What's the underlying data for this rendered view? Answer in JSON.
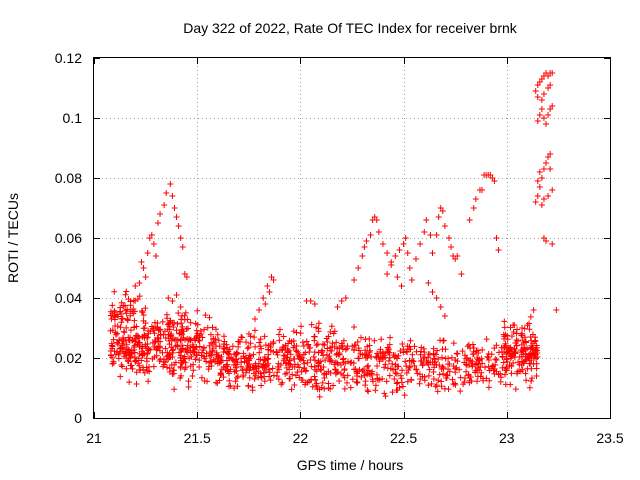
{
  "chart_data": {
    "type": "scatter",
    "title": "Day 322 of 2022, Rate Of TEC Index for receiver brnk",
    "xlabel": "GPS time / hours",
    "ylabel": "ROTI / TECUs",
    "xlim": [
      21,
      23.5
    ],
    "ylim": [
      0,
      0.12
    ],
    "xticks": [
      21,
      21.5,
      22,
      22.5,
      23,
      23.5
    ],
    "xtick_labels": [
      "21",
      "21.5",
      "22",
      "22.5",
      "23",
      "23.5"
    ],
    "yticks": [
      0,
      0.02,
      0.04,
      0.06,
      0.08,
      0.1,
      0.12
    ],
    "ytick_labels": [
      "0",
      "0.02",
      "0.04",
      "0.06",
      "0.08",
      "0.1",
      "0.12"
    ],
    "grid": true,
    "marker": "+",
    "series": [
      {
        "name": "ROTI",
        "color": "#ff0000",
        "clusters": [
          {
            "x": [
              21.08,
              21.6
            ],
            "y": [
              0.008,
              0.04
            ],
            "n": 420
          },
          {
            "x": [
              21.08,
              21.25
            ],
            "y": [
              0.028,
              0.045
            ],
            "n": 40
          },
          {
            "x": [
              21.6,
              22.0
            ],
            "y": [
              0.006,
              0.032
            ],
            "n": 260
          },
          {
            "x": [
              22.0,
              22.45
            ],
            "y": [
              0.004,
              0.034
            ],
            "n": 260
          },
          {
            "x": [
              22.45,
              22.98
            ],
            "y": [
              0.006,
              0.03
            ],
            "n": 240
          },
          {
            "x": [
              22.98,
              23.15
            ],
            "y": [
              0.008,
              0.036
            ],
            "n": 160
          }
        ],
        "points": [
          [
            21.2,
            0.044
          ],
          [
            21.22,
            0.045
          ],
          [
            21.24,
            0.05
          ],
          [
            21.26,
            0.055
          ],
          [
            21.27,
            0.06
          ],
          [
            21.28,
            0.061
          ],
          [
            21.29,
            0.058
          ],
          [
            21.3,
            0.054
          ],
          [
            21.25,
            0.047
          ],
          [
            21.23,
            0.052
          ],
          [
            21.31,
            0.065
          ],
          [
            21.32,
            0.068
          ],
          [
            21.34,
            0.071
          ],
          [
            21.35,
            0.075
          ],
          [
            21.37,
            0.078
          ],
          [
            21.38,
            0.074
          ],
          [
            21.39,
            0.07
          ],
          [
            21.4,
            0.067
          ],
          [
            21.41,
            0.064
          ],
          [
            21.42,
            0.06
          ],
          [
            21.43,
            0.057
          ],
          [
            21.44,
            0.048
          ],
          [
            21.45,
            0.047
          ],
          [
            21.36,
            0.04
          ],
          [
            21.38,
            0.039
          ],
          [
            21.4,
            0.041
          ],
          [
            21.42,
            0.037
          ],
          [
            21.78,
            0.033
          ],
          [
            21.8,
            0.036
          ],
          [
            21.82,
            0.04
          ],
          [
            21.84,
            0.044
          ],
          [
            21.86,
            0.047
          ],
          [
            21.87,
            0.046
          ],
          [
            21.85,
            0.042
          ],
          [
            21.83,
            0.038
          ],
          [
            22.03,
            0.039
          ],
          [
            22.05,
            0.039
          ],
          [
            22.07,
            0.038
          ],
          [
            22.18,
            0.037
          ],
          [
            22.2,
            0.039
          ],
          [
            22.22,
            0.04
          ],
          [
            22.26,
            0.046
          ],
          [
            22.28,
            0.05
          ],
          [
            22.3,
            0.054
          ],
          [
            22.31,
            0.057
          ],
          [
            22.32,
            0.059
          ],
          [
            22.34,
            0.061
          ],
          [
            22.35,
            0.066
          ],
          [
            22.36,
            0.067
          ],
          [
            22.37,
            0.066
          ],
          [
            22.38,
            0.062
          ],
          [
            22.4,
            0.058
          ],
          [
            22.42,
            0.055
          ],
          [
            22.44,
            0.052
          ],
          [
            22.46,
            0.054
          ],
          [
            22.48,
            0.056
          ],
          [
            22.5,
            0.058
          ],
          [
            22.51,
            0.06
          ],
          [
            22.52,
            0.055
          ],
          [
            22.53,
            0.05
          ],
          [
            22.54,
            0.046
          ],
          [
            22.42,
            0.048
          ],
          [
            22.44,
            0.051
          ],
          [
            22.47,
            0.047
          ],
          [
            22.49,
            0.044
          ],
          [
            22.56,
            0.053
          ],
          [
            22.58,
            0.058
          ],
          [
            22.6,
            0.062
          ],
          [
            22.61,
            0.066
          ],
          [
            22.63,
            0.061
          ],
          [
            22.64,
            0.055
          ],
          [
            22.66,
            0.061
          ],
          [
            22.67,
            0.067
          ],
          [
            22.68,
            0.07
          ],
          [
            22.69,
            0.069
          ],
          [
            22.7,
            0.064
          ],
          [
            22.72,
            0.06
          ],
          [
            22.73,
            0.057
          ],
          [
            22.74,
            0.054
          ],
          [
            22.75,
            0.053
          ],
          [
            22.76,
            0.054
          ],
          [
            22.62,
            0.045
          ],
          [
            22.64,
            0.042
          ],
          [
            22.66,
            0.04
          ],
          [
            22.68,
            0.037
          ],
          [
            22.7,
            0.034
          ],
          [
            22.78,
            0.048
          ],
          [
            22.82,
            0.066
          ],
          [
            22.84,
            0.07
          ],
          [
            22.85,
            0.073
          ],
          [
            22.87,
            0.076
          ],
          [
            22.88,
            0.076
          ],
          [
            22.89,
            0.081
          ],
          [
            22.9,
            0.081
          ],
          [
            22.91,
            0.081
          ],
          [
            22.92,
            0.081
          ],
          [
            22.93,
            0.08
          ],
          [
            22.94,
            0.079
          ],
          [
            22.95,
            0.06
          ],
          [
            22.96,
            0.056
          ],
          [
            23.13,
            0.036
          ],
          [
            23.14,
            0.072
          ],
          [
            23.15,
            0.074
          ],
          [
            23.16,
            0.077
          ],
          [
            23.17,
            0.08
          ],
          [
            23.18,
            0.083
          ],
          [
            23.19,
            0.085
          ],
          [
            23.2,
            0.087
          ],
          [
            23.21,
            0.088
          ],
          [
            23.15,
            0.079
          ],
          [
            23.16,
            0.082
          ],
          [
            23.17,
            0.071
          ],
          [
            23.18,
            0.073
          ],
          [
            23.2,
            0.074
          ],
          [
            23.22,
            0.076
          ],
          [
            23.21,
            0.083
          ],
          [
            23.15,
            0.099
          ],
          [
            23.16,
            0.101
          ],
          [
            23.17,
            0.103
          ],
          [
            23.18,
            0.1
          ],
          [
            23.19,
            0.098
          ],
          [
            23.2,
            0.101
          ],
          [
            23.21,
            0.103
          ],
          [
            23.22,
            0.104
          ],
          [
            23.14,
            0.109
          ],
          [
            23.15,
            0.111
          ],
          [
            23.16,
            0.112
          ],
          [
            23.17,
            0.113
          ],
          [
            23.18,
            0.114
          ],
          [
            23.19,
            0.115
          ],
          [
            23.2,
            0.114
          ],
          [
            23.21,
            0.115
          ],
          [
            23.22,
            0.115
          ],
          [
            23.15,
            0.107
          ],
          [
            23.17,
            0.106
          ],
          [
            23.18,
            0.108
          ],
          [
            23.2,
            0.11
          ],
          [
            23.21,
            0.111
          ],
          [
            23.18,
            0.06
          ],
          [
            23.19,
            0.059
          ],
          [
            23.22,
            0.058
          ],
          [
            23.24,
            0.036
          ]
        ]
      }
    ]
  }
}
